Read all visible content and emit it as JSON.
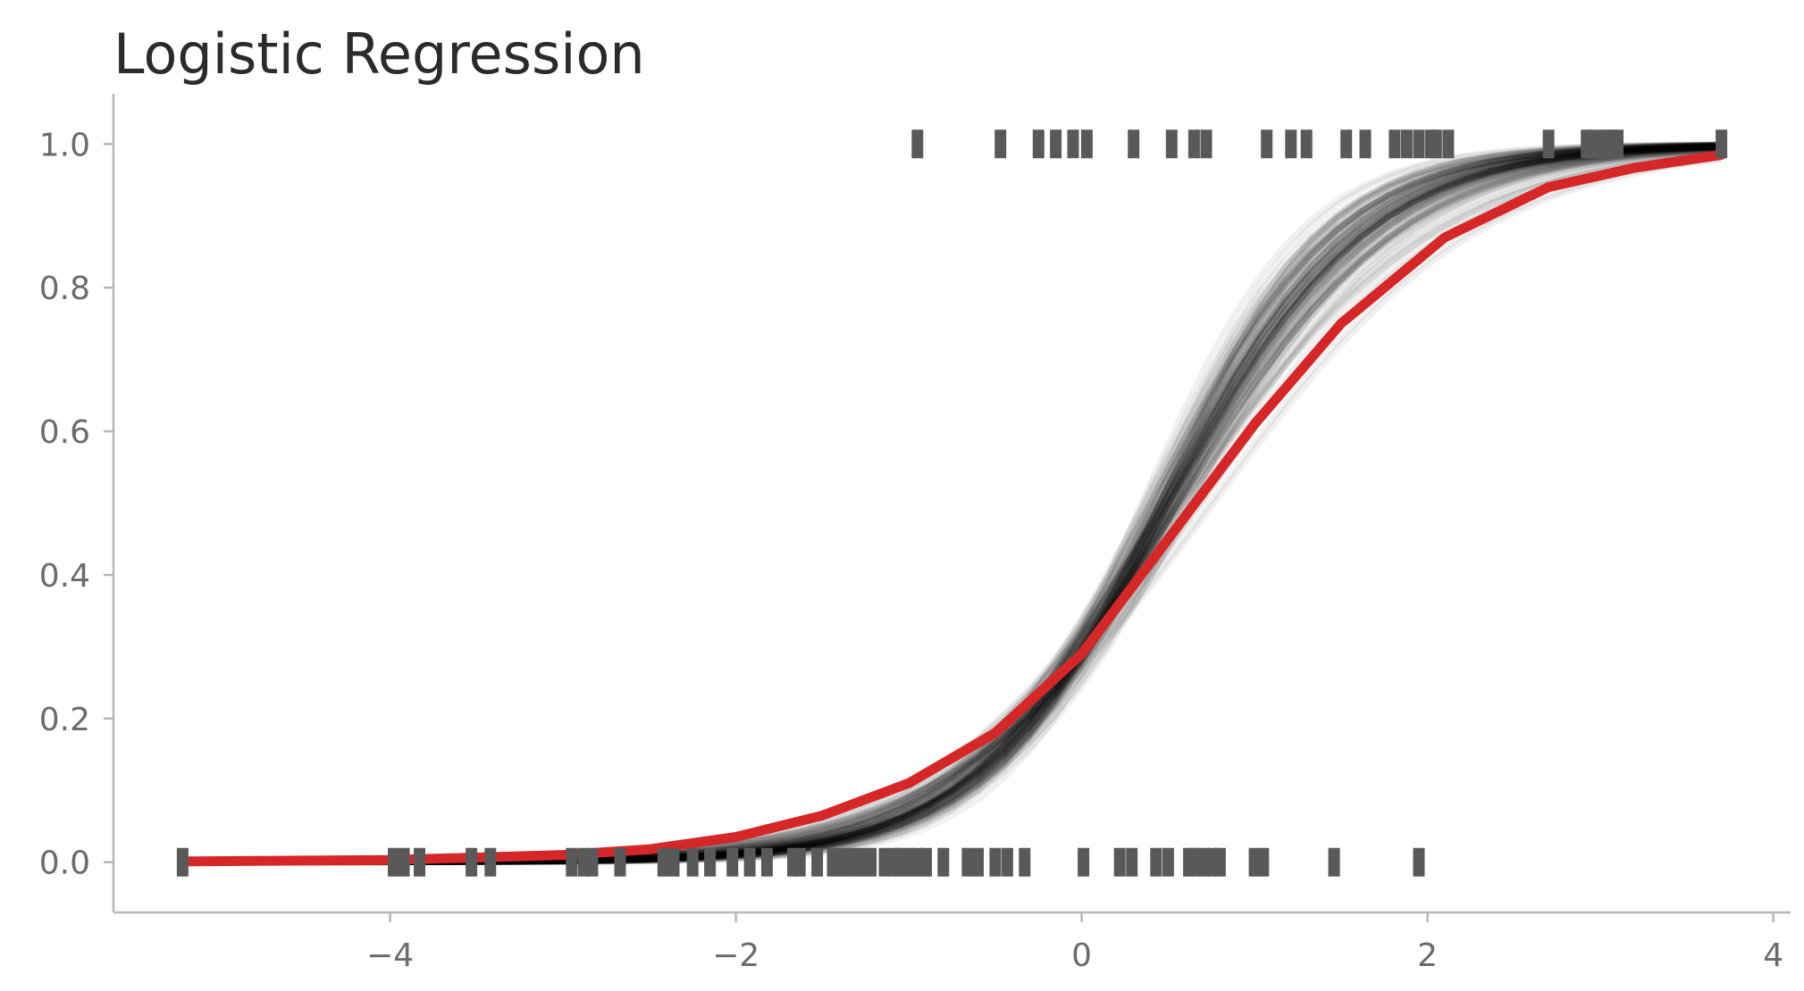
{
  "chart_data": {
    "type": "line",
    "title": "Logistic Regression",
    "xlabel": "",
    "ylabel": "",
    "xlim": [
      -5.6,
      4.1
    ],
    "ylim": [
      -0.07,
      1.07
    ],
    "x_ticks": [
      -4,
      -2,
      0,
      2,
      4
    ],
    "x_tick_labels": [
      "−4",
      "−2",
      "0",
      "2",
      "4"
    ],
    "y_ticks": [
      0.0,
      0.2,
      0.4,
      0.6,
      0.8,
      1.0
    ],
    "y_tick_labels": [
      "0.0",
      "0.2",
      "0.4",
      "0.6",
      "0.8",
      "1.0"
    ],
    "grid": false,
    "legend": "none",
    "colors": {
      "mean": "#d62728",
      "samples": "#000000",
      "rug": "#595959",
      "axes": "#b7b7b7"
    },
    "posterior_samples": {
      "alpha_range": [
        -1.15,
        -0.65
      ],
      "beta_range": [
        1.25,
        2.25
      ],
      "count": 100
    },
    "series": [
      {
        "x": [
          -5.2,
          -4.0,
          -3.0,
          -2.5,
          -2.0,
          -1.5,
          -1.0,
          -0.5,
          0.0,
          0.5,
          1.0,
          1.5,
          2.1,
          2.7,
          3.2,
          3.7
        ],
        "y": [
          0.001,
          0.003,
          0.01,
          0.018,
          0.035,
          0.065,
          0.11,
          0.18,
          0.29,
          0.45,
          0.61,
          0.75,
          0.87,
          0.94,
          0.967,
          0.985
        ]
      }
    ],
    "rug_y1": [
      -0.95,
      -0.47,
      -0.25,
      -0.15,
      -0.05,
      0.03,
      0.3,
      0.52,
      0.65,
      0.72,
      1.07,
      1.21,
      1.3,
      1.53,
      1.64,
      1.81,
      1.88,
      1.95,
      2.02,
      2.05,
      2.12,
      2.7,
      2.92,
      2.97,
      3.03,
      3.07,
      3.1,
      3.7
    ],
    "rug_y0": [
      -5.2,
      -3.98,
      -3.92,
      -3.83,
      -3.53,
      -3.42,
      -2.95,
      -2.88,
      -2.83,
      -2.67,
      -2.42,
      -2.36,
      -2.25,
      -2.15,
      -2.02,
      -1.92,
      -1.82,
      -1.67,
      -1.63,
      -1.53,
      -1.44,
      -1.39,
      -1.33,
      -1.27,
      -1.22,
      -1.14,
      -1.09,
      -1.05,
      -1.0,
      -0.95,
      -0.9,
      -0.8,
      -0.66,
      -0.6,
      -0.5,
      -0.43,
      -0.33,
      0.01,
      0.22,
      0.29,
      0.43,
      0.5,
      0.62,
      0.66,
      0.71,
      0.76,
      0.8,
      1.0,
      1.05,
      1.46,
      1.95
    ]
  }
}
